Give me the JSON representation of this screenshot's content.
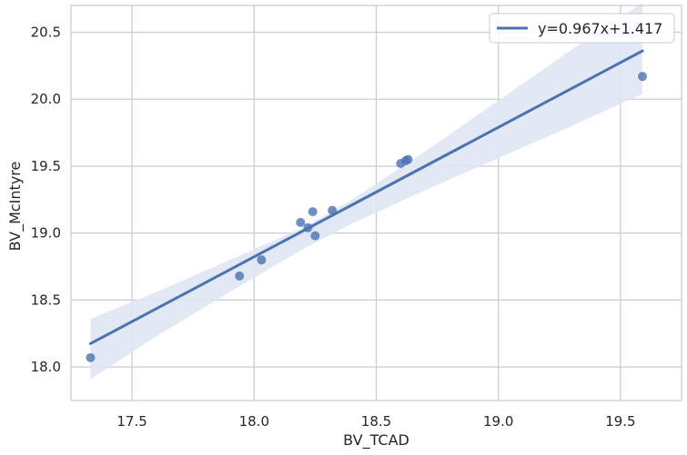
{
  "chart_data": {
    "type": "scatter",
    "xlabel": "BV_TCAD",
    "ylabel": "BV_McIntyre",
    "xlim": [
      17.25,
      19.75
    ],
    "ylim": [
      17.75,
      20.7
    ],
    "xticks": [
      17.5,
      18.0,
      18.5,
      19.0,
      19.5
    ],
    "xtick_labels": [
      "17.5",
      "18.0",
      "18.5",
      "19.0",
      "19.5"
    ],
    "yticks": [
      18.0,
      18.5,
      19.0,
      19.5,
      20.0,
      20.5
    ],
    "ytick_labels": [
      "18.0",
      "18.5",
      "19.0",
      "19.5",
      "20.0",
      "20.5"
    ],
    "grid": true,
    "legend_position": "top-right",
    "points": [
      {
        "x": 17.33,
        "y": 18.07
      },
      {
        "x": 17.94,
        "y": 18.68
      },
      {
        "x": 18.03,
        "y": 18.8
      },
      {
        "x": 18.19,
        "y": 19.08
      },
      {
        "x": 18.22,
        "y": 19.04
      },
      {
        "x": 18.24,
        "y": 19.16
      },
      {
        "x": 18.25,
        "y": 18.98
      },
      {
        "x": 18.32,
        "y": 19.17
      },
      {
        "x": 18.6,
        "y": 19.52
      },
      {
        "x": 18.62,
        "y": 19.54
      },
      {
        "x": 18.63,
        "y": 19.55
      },
      {
        "x": 19.59,
        "y": 20.17
      }
    ],
    "fit": {
      "label": "y=0.967x+1.417",
      "slope": 0.967,
      "intercept": 1.417,
      "x_range": [
        17.33,
        19.59
      ]
    },
    "confidence_band": [
      {
        "x": 17.33,
        "lower": 17.91,
        "upper": 18.36
      },
      {
        "x": 17.6,
        "lower": 18.23,
        "upper": 18.56
      },
      {
        "x": 17.9,
        "lower": 18.56,
        "upper": 18.8
      },
      {
        "x": 18.2,
        "lower": 18.88,
        "upper": 19.04
      },
      {
        "x": 18.4,
        "lower": 19.07,
        "upper": 19.25
      },
      {
        "x": 18.7,
        "lower": 19.32,
        "upper": 19.61
      },
      {
        "x": 19.0,
        "lower": 19.56,
        "upper": 19.99
      },
      {
        "x": 19.3,
        "lower": 19.8,
        "upper": 20.37
      },
      {
        "x": 19.59,
        "lower": 20.04,
        "upper": 20.72
      }
    ],
    "colors": {
      "points": "#4c72b0",
      "line": "#4c72b0",
      "band": "#dfe6f3",
      "grid": "#cccccc",
      "spine": "#cccccc"
    }
  }
}
